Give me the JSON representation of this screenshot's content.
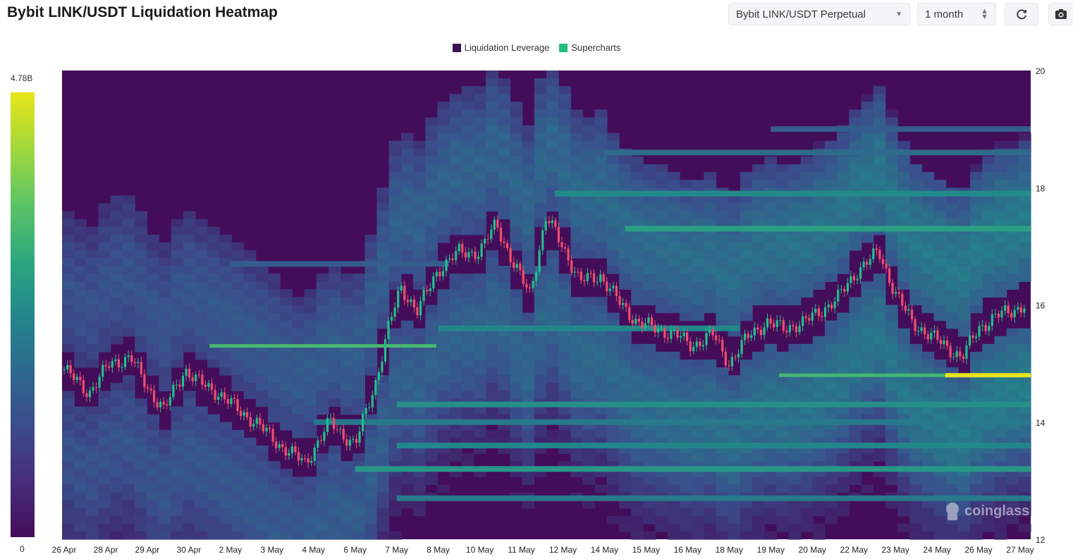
{
  "title": "Bybit LINK/USDT Liquidation Heatmap",
  "controls": {
    "exchange_pair": "Bybit LINK/USDT Perpetual",
    "timeframe": "1 month",
    "refresh_icon": "refresh-icon",
    "camera_icon": "camera-icon"
  },
  "legend": {
    "items": [
      {
        "label": "Liquidation Leverage",
        "color": "#3e1059"
      },
      {
        "label": "Supercharts",
        "color": "#22c07b"
      }
    ]
  },
  "colorbar": {
    "max_label": "4.78B",
    "min_label": "0"
  },
  "watermark": "coinglass",
  "chart_data": {
    "type": "heatmap",
    "title": "Bybit LINK/USDT Liquidation Heatmap",
    "x_tick_labels": [
      "26 Apr",
      "28 Apr",
      "29 Apr",
      "30 Apr",
      "2 May",
      "3 May",
      "4 May",
      "6 May",
      "7 May",
      "8 May",
      "10 May",
      "11 May",
      "12 May",
      "14 May",
      "15 May",
      "16 May",
      "18 May",
      "19 May",
      "20 May",
      "22 May",
      "23 May",
      "24 May",
      "26 May",
      "27 May"
    ],
    "y_ticks": [
      12,
      14,
      16,
      18,
      20
    ],
    "ylim": [
      12,
      20
    ],
    "colorscale": {
      "min": 0,
      "max": 4.78,
      "unit": "B",
      "colors": [
        "#440d5a",
        "#3a4e8c",
        "#22878b",
        "#2da780",
        "#5bc564",
        "#e9e51a"
      ]
    },
    "price_path": {
      "x_index": [
        0,
        0.6,
        1.1,
        1.6,
        2.0,
        2.4,
        2.9,
        3.2,
        3.7,
        4.2,
        4.6,
        5.2,
        5.8,
        6.4,
        7.0,
        7.5,
        7.8,
        8.1,
        8.5,
        9.0,
        9.5,
        10.0,
        10.4,
        10.8,
        11.2,
        11.6,
        12.0,
        12.4,
        12.9,
        13.4,
        13.8,
        14.2,
        14.7,
        15.1,
        15.6,
        16.0,
        16.5,
        16.9,
        17.3,
        17.8,
        18.2,
        18.6,
        19.1,
        19.6,
        20.0,
        20.4,
        20.8,
        21.2,
        21.6,
        22.0,
        22.4,
        22.8,
        23.1
      ],
      "price": [
        14.9,
        14.5,
        15.0,
        15.1,
        14.6,
        14.2,
        14.9,
        14.7,
        14.5,
        14.2,
        14.0,
        13.6,
        13.3,
        14.0,
        13.6,
        14.7,
        15.6,
        16.3,
        15.9,
        16.6,
        16.9,
        16.9,
        17.4,
        16.7,
        16.2,
        17.5,
        17.0,
        16.4,
        16.5,
        16.0,
        15.7,
        15.6,
        15.5,
        15.3,
        15.5,
        15.0,
        15.5,
        15.7,
        15.6,
        15.7,
        15.9,
        16.1,
        16.6,
        16.9,
        16.2,
        15.7,
        15.5,
        15.3,
        15.1,
        15.6,
        15.8,
        15.9,
        16.0
      ]
    },
    "liquidation_bands": [
      {
        "price": 15.3,
        "x_start_index": 3.5,
        "x_end_index": 8.7,
        "intensity": 0.72
      },
      {
        "price": 14.8,
        "x_start_index": 17.2,
        "x_end_index": 23.1,
        "intensity": 0.7
      },
      {
        "price": 14.8,
        "x_start_index": 21.2,
        "x_end_index": 23.1,
        "intensity": 1.0
      },
      {
        "price": 17.3,
        "x_start_index": 13.5,
        "x_end_index": 23.1,
        "intensity": 0.55
      },
      {
        "price": 17.9,
        "x_start_index": 11.8,
        "x_end_index": 23.1,
        "intensity": 0.42
      },
      {
        "price": 15.6,
        "x_start_index": 9.0,
        "x_end_index": 16.0,
        "intensity": 0.4
      },
      {
        "price": 13.2,
        "x_start_index": 7.0,
        "x_end_index": 23.1,
        "intensity": 0.5
      },
      {
        "price": 14.3,
        "x_start_index": 8.0,
        "x_end_index": 23.1,
        "intensity": 0.45
      },
      {
        "price": 13.6,
        "x_start_index": 8.0,
        "x_end_index": 23.1,
        "intensity": 0.4
      },
      {
        "price": 14.0,
        "x_start_index": 6.0,
        "x_end_index": 23.1,
        "intensity": 0.35
      },
      {
        "price": 18.6,
        "x_start_index": 13.0,
        "x_end_index": 23.1,
        "intensity": 0.3
      },
      {
        "price": 12.7,
        "x_start_index": 8.0,
        "x_end_index": 23.1,
        "intensity": 0.35
      },
      {
        "price": 16.7,
        "x_start_index": 4.0,
        "x_end_index": 9.0,
        "intensity": 0.25
      },
      {
        "price": 19.0,
        "x_start_index": 17.0,
        "x_end_index": 23.1,
        "intensity": 0.25
      }
    ]
  }
}
